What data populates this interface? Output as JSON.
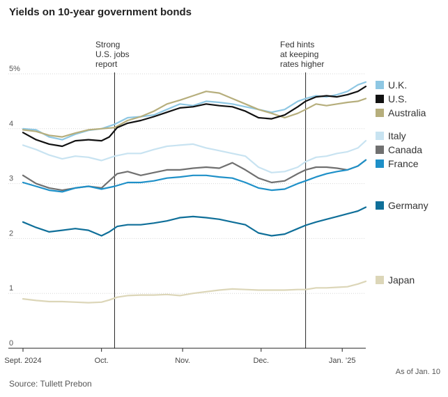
{
  "chart_data": {
    "type": "line",
    "title": "Yields on 10-year government bonds",
    "xlabel": "",
    "ylabel": "",
    "ylim": [
      0,
      5
    ],
    "y_ticks": [
      {
        "value": 0,
        "label": "0"
      },
      {
        "value": 1,
        "label": "1"
      },
      {
        "value": 2,
        "label": "2"
      },
      {
        "value": 3,
        "label": "3"
      },
      {
        "value": 4,
        "label": "4"
      },
      {
        "value": 5,
        "label": "5%"
      }
    ],
    "x_start": "2024-09-01",
    "x_end": "2025-01-10",
    "x_ticks": [
      {
        "day": 0,
        "label": "Sept. 2024"
      },
      {
        "day": 30,
        "label": "Oct."
      },
      {
        "day": 61,
        "label": "Nov."
      },
      {
        "day": 91,
        "label": "Dec."
      },
      {
        "day": 122,
        "label": "Jan. ’25"
      }
    ],
    "annotations": [
      {
        "day": 35,
        "text": [
          "Strong",
          "U.S. jobs",
          "report"
        ]
      },
      {
        "day": 108,
        "text": [
          "Fed hints",
          "at keeping",
          "rates higher"
        ]
      }
    ],
    "series": [
      {
        "name": "U.K.",
        "color": "#8ec7e3",
        "points": [
          [
            0,
            4.0
          ],
          [
            5,
            3.98
          ],
          [
            10,
            3.85
          ],
          [
            15,
            3.8
          ],
          [
            20,
            3.9
          ],
          [
            25,
            3.97
          ],
          [
            30,
            4.0
          ],
          [
            35,
            4.08
          ],
          [
            40,
            4.2
          ],
          [
            45,
            4.22
          ],
          [
            50,
            4.25
          ],
          [
            55,
            4.35
          ],
          [
            60,
            4.45
          ],
          [
            65,
            4.42
          ],
          [
            70,
            4.5
          ],
          [
            75,
            4.48
          ],
          [
            80,
            4.45
          ],
          [
            85,
            4.4
          ],
          [
            90,
            4.35
          ],
          [
            95,
            4.3
          ],
          [
            100,
            4.35
          ],
          [
            105,
            4.5
          ],
          [
            108,
            4.55
          ],
          [
            112,
            4.6
          ],
          [
            116,
            4.58
          ],
          [
            120,
            4.62
          ],
          [
            124,
            4.68
          ],
          [
            128,
            4.8
          ],
          [
            131,
            4.85
          ]
        ]
      },
      {
        "name": "U.S.",
        "color": "#111111",
        "points": [
          [
            0,
            3.93
          ],
          [
            5,
            3.8
          ],
          [
            10,
            3.72
          ],
          [
            15,
            3.68
          ],
          [
            20,
            3.78
          ],
          [
            25,
            3.8
          ],
          [
            30,
            3.78
          ],
          [
            33,
            3.85
          ],
          [
            36,
            4.02
          ],
          [
            40,
            4.1
          ],
          [
            45,
            4.15
          ],
          [
            50,
            4.22
          ],
          [
            55,
            4.3
          ],
          [
            60,
            4.38
          ],
          [
            65,
            4.4
          ],
          [
            70,
            4.45
          ],
          [
            75,
            4.42
          ],
          [
            80,
            4.4
          ],
          [
            85,
            4.32
          ],
          [
            90,
            4.2
          ],
          [
            95,
            4.18
          ],
          [
            100,
            4.25
          ],
          [
            105,
            4.4
          ],
          [
            108,
            4.5
          ],
          [
            112,
            4.58
          ],
          [
            116,
            4.6
          ],
          [
            120,
            4.58
          ],
          [
            124,
            4.62
          ],
          [
            128,
            4.68
          ],
          [
            131,
            4.77
          ]
        ]
      },
      {
        "name": "Australia",
        "color": "#b6ae7c",
        "points": [
          [
            0,
            3.98
          ],
          [
            5,
            3.95
          ],
          [
            10,
            3.88
          ],
          [
            15,
            3.85
          ],
          [
            20,
            3.92
          ],
          [
            25,
            3.98
          ],
          [
            30,
            4.0
          ],
          [
            35,
            4.02
          ],
          [
            40,
            4.15
          ],
          [
            45,
            4.22
          ],
          [
            50,
            4.32
          ],
          [
            55,
            4.45
          ],
          [
            60,
            4.52
          ],
          [
            65,
            4.6
          ],
          [
            70,
            4.68
          ],
          [
            75,
            4.65
          ],
          [
            80,
            4.55
          ],
          [
            85,
            4.45
          ],
          [
            90,
            4.35
          ],
          [
            95,
            4.28
          ],
          [
            100,
            4.2
          ],
          [
            105,
            4.28
          ],
          [
            108,
            4.35
          ],
          [
            112,
            4.45
          ],
          [
            116,
            4.42
          ],
          [
            120,
            4.45
          ],
          [
            124,
            4.48
          ],
          [
            128,
            4.5
          ],
          [
            131,
            4.55
          ]
        ]
      },
      {
        "name": "Italy",
        "color": "#c8e3f1",
        "points": [
          [
            0,
            3.7
          ],
          [
            5,
            3.62
          ],
          [
            10,
            3.52
          ],
          [
            15,
            3.45
          ],
          [
            20,
            3.5
          ],
          [
            25,
            3.48
          ],
          [
            30,
            3.42
          ],
          [
            35,
            3.5
          ],
          [
            40,
            3.55
          ],
          [
            45,
            3.55
          ],
          [
            50,
            3.62
          ],
          [
            55,
            3.68
          ],
          [
            60,
            3.7
          ],
          [
            65,
            3.72
          ],
          [
            70,
            3.65
          ],
          [
            75,
            3.6
          ],
          [
            80,
            3.55
          ],
          [
            85,
            3.5
          ],
          [
            90,
            3.3
          ],
          [
            95,
            3.2
          ],
          [
            100,
            3.22
          ],
          [
            105,
            3.3
          ],
          [
            108,
            3.4
          ],
          [
            112,
            3.48
          ],
          [
            116,
            3.5
          ],
          [
            120,
            3.55
          ],
          [
            124,
            3.58
          ],
          [
            128,
            3.65
          ],
          [
            131,
            3.78
          ]
        ]
      },
      {
        "name": "Canada",
        "color": "#707070",
        "points": [
          [
            0,
            3.15
          ],
          [
            5,
            3.0
          ],
          [
            10,
            2.92
          ],
          [
            15,
            2.88
          ],
          [
            20,
            2.92
          ],
          [
            25,
            2.95
          ],
          [
            30,
            2.92
          ],
          [
            33,
            3.05
          ],
          [
            36,
            3.18
          ],
          [
            40,
            3.22
          ],
          [
            45,
            3.15
          ],
          [
            50,
            3.2
          ],
          [
            55,
            3.25
          ],
          [
            60,
            3.25
          ],
          [
            65,
            3.28
          ],
          [
            70,
            3.3
          ],
          [
            75,
            3.28
          ],
          [
            80,
            3.38
          ],
          [
            85,
            3.25
          ],
          [
            90,
            3.1
          ],
          [
            95,
            3.02
          ],
          [
            100,
            3.05
          ],
          [
            105,
            3.18
          ],
          [
            108,
            3.25
          ],
          [
            112,
            3.3
          ],
          [
            116,
            3.3
          ],
          [
            120,
            3.28
          ],
          [
            124,
            3.25
          ],
          [
            128,
            3.32
          ],
          [
            131,
            3.43
          ]
        ]
      },
      {
        "name": "France",
        "color": "#1e90c8",
        "points": [
          [
            0,
            3.02
          ],
          [
            5,
            2.95
          ],
          [
            10,
            2.88
          ],
          [
            15,
            2.85
          ],
          [
            20,
            2.92
          ],
          [
            25,
            2.95
          ],
          [
            30,
            2.9
          ],
          [
            35,
            2.95
          ],
          [
            40,
            3.02
          ],
          [
            45,
            3.02
          ],
          [
            50,
            3.05
          ],
          [
            55,
            3.1
          ],
          [
            60,
            3.12
          ],
          [
            65,
            3.15
          ],
          [
            70,
            3.15
          ],
          [
            75,
            3.12
          ],
          [
            80,
            3.1
          ],
          [
            85,
            3.02
          ],
          [
            90,
            2.92
          ],
          [
            95,
            2.88
          ],
          [
            100,
            2.9
          ],
          [
            105,
            3.0
          ],
          [
            108,
            3.05
          ],
          [
            112,
            3.12
          ],
          [
            116,
            3.18
          ],
          [
            120,
            3.22
          ],
          [
            124,
            3.25
          ],
          [
            128,
            3.32
          ],
          [
            131,
            3.43
          ]
        ]
      },
      {
        "name": "Germany",
        "color": "#0f6f99",
        "points": [
          [
            0,
            2.3
          ],
          [
            5,
            2.2
          ],
          [
            10,
            2.12
          ],
          [
            15,
            2.15
          ],
          [
            20,
            2.18
          ],
          [
            25,
            2.15
          ],
          [
            30,
            2.05
          ],
          [
            33,
            2.12
          ],
          [
            36,
            2.22
          ],
          [
            40,
            2.25
          ],
          [
            45,
            2.25
          ],
          [
            50,
            2.28
          ],
          [
            55,
            2.32
          ],
          [
            60,
            2.38
          ],
          [
            65,
            2.4
          ],
          [
            70,
            2.38
          ],
          [
            75,
            2.35
          ],
          [
            80,
            2.3
          ],
          [
            85,
            2.25
          ],
          [
            90,
            2.1
          ],
          [
            95,
            2.05
          ],
          [
            100,
            2.08
          ],
          [
            105,
            2.18
          ],
          [
            108,
            2.24
          ],
          [
            112,
            2.3
          ],
          [
            116,
            2.35
          ],
          [
            120,
            2.4
          ],
          [
            124,
            2.45
          ],
          [
            128,
            2.5
          ],
          [
            131,
            2.57
          ]
        ]
      },
      {
        "name": "Japan",
        "color": "#dcd6b8",
        "points": [
          [
            0,
            0.9
          ],
          [
            5,
            0.87
          ],
          [
            10,
            0.85
          ],
          [
            15,
            0.85
          ],
          [
            20,
            0.84
          ],
          [
            25,
            0.83
          ],
          [
            30,
            0.84
          ],
          [
            33,
            0.88
          ],
          [
            36,
            0.93
          ],
          [
            40,
            0.96
          ],
          [
            45,
            0.97
          ],
          [
            50,
            0.97
          ],
          [
            55,
            0.98
          ],
          [
            60,
            0.96
          ],
          [
            65,
            1.0
          ],
          [
            70,
            1.03
          ],
          [
            75,
            1.06
          ],
          [
            80,
            1.08
          ],
          [
            85,
            1.07
          ],
          [
            90,
            1.06
          ],
          [
            95,
            1.06
          ],
          [
            100,
            1.06
          ],
          [
            105,
            1.07
          ],
          [
            108,
            1.07
          ],
          [
            112,
            1.1
          ],
          [
            116,
            1.1
          ],
          [
            120,
            1.11
          ],
          [
            124,
            1.12
          ],
          [
            128,
            1.17
          ],
          [
            131,
            1.22
          ]
        ]
      }
    ]
  },
  "legend": [
    {
      "label": "U.K.",
      "color": "#8ec7e3"
    },
    {
      "label": "U.S.",
      "color": "#111111"
    },
    {
      "label": "Australia",
      "color": "#b6ae7c"
    },
    {
      "label": "Italy",
      "color": "#c8e3f1"
    },
    {
      "label": "Canada",
      "color": "#707070"
    },
    {
      "label": "France",
      "color": "#1e90c8"
    },
    {
      "label": "Germany",
      "color": "#0f6f99"
    },
    {
      "label": "Japan",
      "color": "#dcd6b8"
    }
  ],
  "source": "Source: Tullett Prebon",
  "as_of": "As of Jan. 10"
}
